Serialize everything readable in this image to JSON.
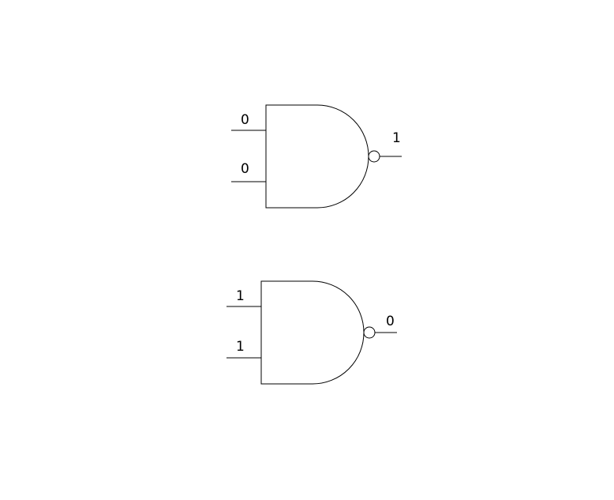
{
  "diagram": {
    "gates": [
      {
        "inputs": [
          "0",
          "0"
        ],
        "output": "1"
      },
      {
        "inputs": [
          "1",
          "1"
        ],
        "output": "0"
      }
    ]
  },
  "colors": {
    "stroke": "#000000",
    "background": "#ffffff"
  }
}
